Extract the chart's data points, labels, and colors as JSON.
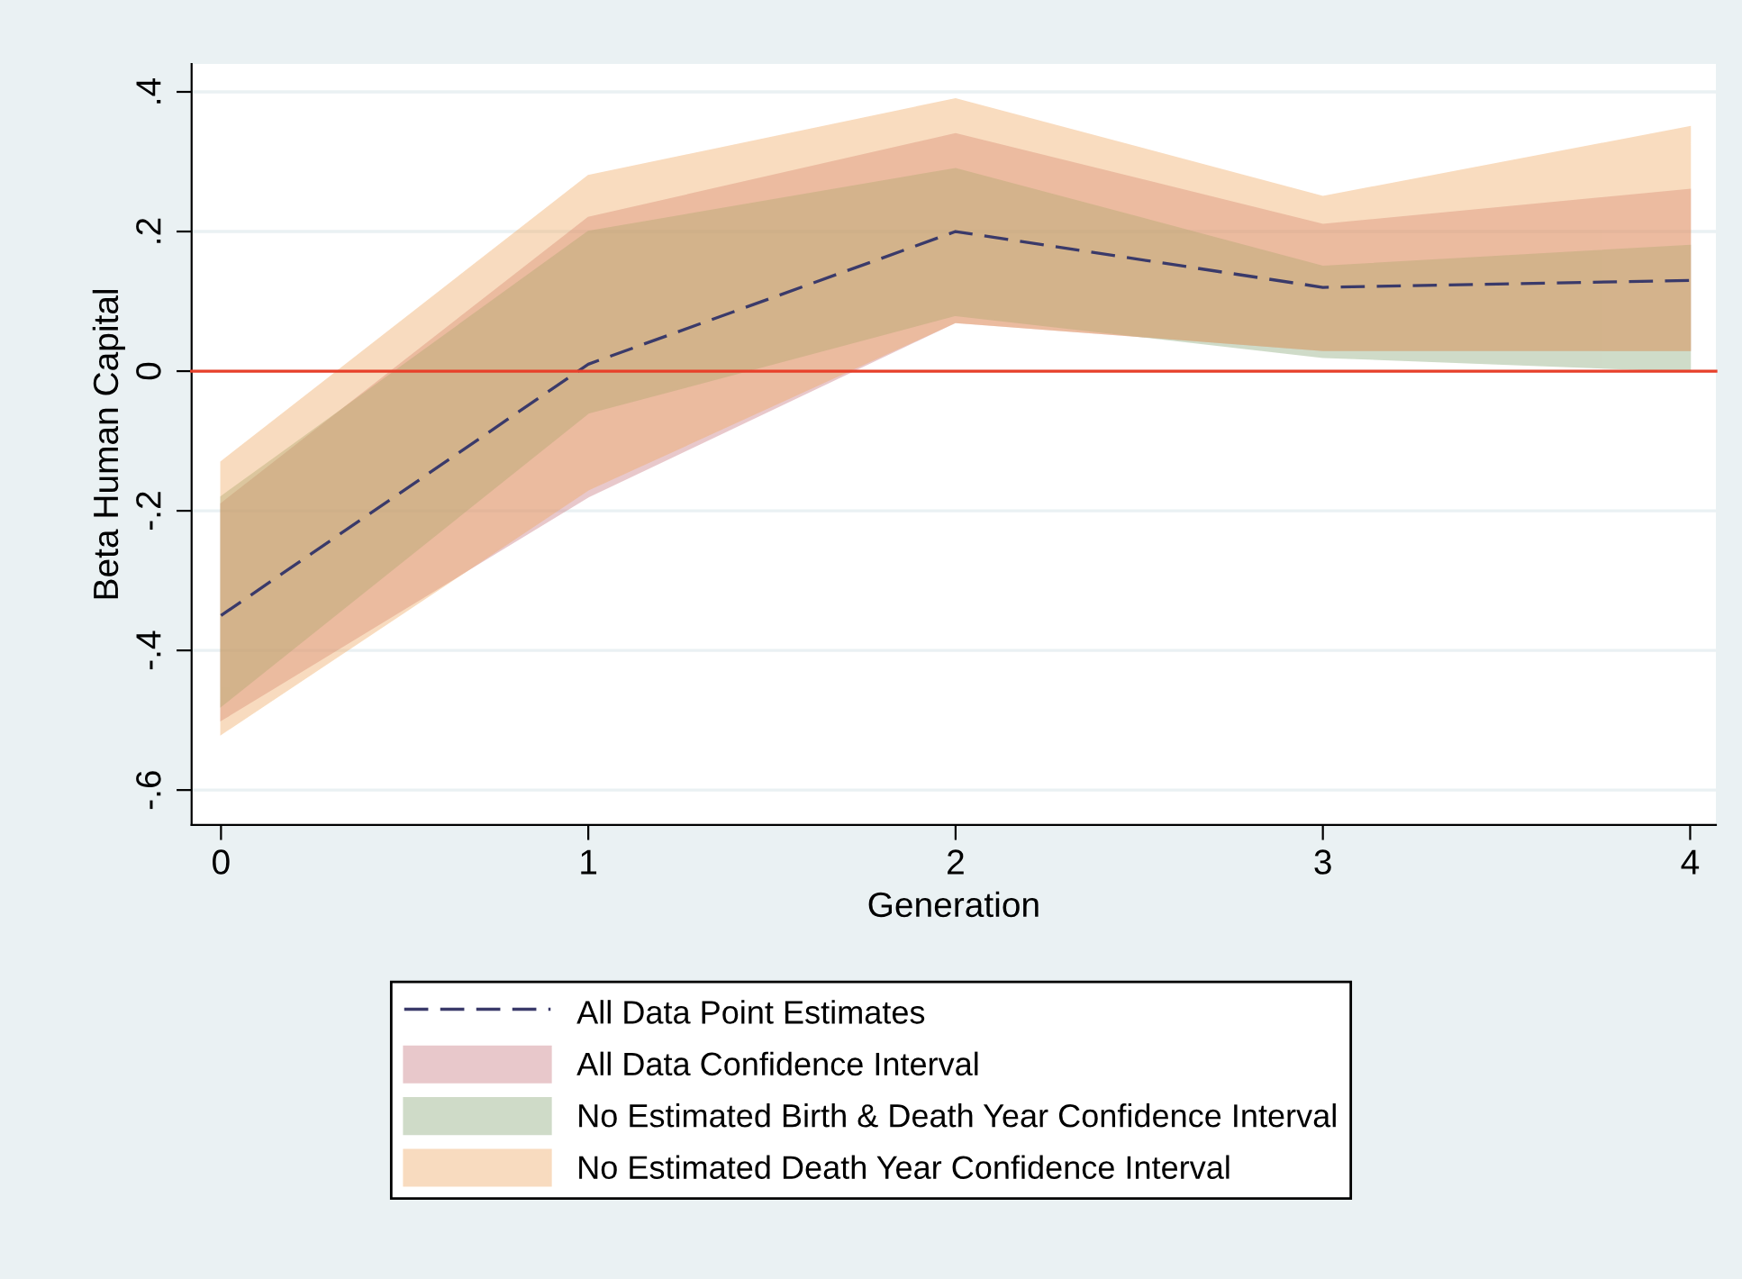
{
  "chart_data": {
    "type": "line",
    "xlabel": "Generation",
    "ylabel": "Beta Human Capital",
    "x": [
      0,
      1,
      2,
      3,
      4
    ],
    "xlim": [
      -0.08,
      4.07
    ],
    "xticks": [
      0,
      1,
      2,
      3,
      4
    ],
    "ylim": [
      -0.65,
      0.44
    ],
    "yticks": [
      {
        "value": -0.6,
        "label": "-.6"
      },
      {
        "value": -0.4,
        "label": "-.4"
      },
      {
        "value": -0.2,
        "label": "-.2"
      },
      {
        "value": 0,
        "label": "0"
      },
      {
        "value": 0.2,
        "label": ".2"
      },
      {
        "value": 0.4,
        "label": ".4"
      }
    ],
    "grid": "y",
    "legend": "bottom",
    "series": [
      {
        "name": "All Data Point Estimates",
        "color": "#3a3a6a",
        "line_style": "dashed",
        "values": [
          -0.35,
          0.01,
          0.2,
          0.12,
          0.13
        ]
      },
      {
        "name": "All Data Confidence Interval",
        "color": "#c87880",
        "values": [
          null,
          null,
          null,
          null,
          null
        ],
        "lower": [
          -0.5,
          -0.18,
          0.07,
          0.03,
          0.03
        ],
        "upper": [
          -0.19,
          0.22,
          0.34,
          0.21,
          0.26
        ]
      },
      {
        "name": "No Estimated Birth & Death Year Confidence Interval",
        "color": "#88a878",
        "values": [
          null,
          null,
          null,
          null,
          null
        ],
        "lower": [
          -0.48,
          -0.06,
          0.08,
          0.02,
          0.0
        ],
        "upper": [
          -0.18,
          0.2,
          0.29,
          0.15,
          0.18
        ]
      },
      {
        "name": "No Estimated Death Year Confidence Interval",
        "color": "#f0a860",
        "values": [
          null,
          null,
          null,
          null,
          null
        ],
        "lower": [
          -0.52,
          -0.17,
          0.07,
          0.03,
          0.03
        ],
        "upper": [
          -0.13,
          0.28,
          0.39,
          0.25,
          0.35
        ]
      }
    ],
    "ref_lines": [
      {
        "axis": "y",
        "value": 0,
        "color": "#e8402a"
      }
    ]
  }
}
